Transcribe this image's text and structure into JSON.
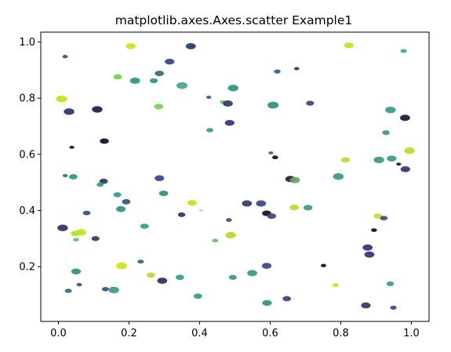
{
  "chart_data": {
    "type": "scatter",
    "title": "matplotlib.axes.Axes.scatter Example1",
    "xlabel": "",
    "ylabel": "",
    "xlim": [
      -0.05,
      1.05
    ],
    "ylim": [
      0.005,
      1.035
    ],
    "xticks": [
      "0.0",
      "0.2",
      "0.4",
      "0.6",
      "0.8",
      "1.0"
    ],
    "yticks": [
      "0.2",
      "0.4",
      "0.6",
      "0.8",
      "1.0"
    ],
    "xtick_values": [
      0.0,
      0.2,
      0.4,
      0.6,
      0.8,
      1.0
    ],
    "ytick_values": [
      0.2,
      0.4,
      0.6,
      0.8,
      1.0
    ],
    "grid": false,
    "legend": "none",
    "marker": "ellipse",
    "colormap": [
      "#440154",
      "#3b528b",
      "#21918c",
      "#5ec962",
      "#fde725"
    ],
    "points": [
      {
        "x": 0.019,
        "y": 0.948,
        "size": 0.15,
        "color": "#3b528b"
      },
      {
        "x": 0.205,
        "y": 0.985,
        "size": 0.55,
        "color": "#d2e21b"
      },
      {
        "x": 0.315,
        "y": 0.93,
        "size": 0.55,
        "color": "#3e4a89"
      },
      {
        "x": 0.375,
        "y": 0.985,
        "size": 0.6,
        "color": "#2c3e6e"
      },
      {
        "x": 0.823,
        "y": 0.988,
        "size": 0.55,
        "color": "#c8e020"
      },
      {
        "x": 0.978,
        "y": 0.968,
        "size": 0.25,
        "color": "#35b779"
      },
      {
        "x": 0.286,
        "y": 0.888,
        "size": 0.5,
        "color": "#3b6f7e"
      },
      {
        "x": 0.168,
        "y": 0.876,
        "size": 0.45,
        "color": "#7ad151"
      },
      {
        "x": 0.217,
        "y": 0.862,
        "size": 0.6,
        "color": "#2a9d7e"
      },
      {
        "x": 0.27,
        "y": 0.862,
        "size": 0.4,
        "color": "#2a9d7e"
      },
      {
        "x": 0.35,
        "y": 0.845,
        "size": 0.7,
        "color": "#4aa88d"
      },
      {
        "x": 0.495,
        "y": 0.836,
        "size": 0.65,
        "color": "#34947f"
      },
      {
        "x": 0.62,
        "y": 0.895,
        "size": 0.25,
        "color": "#355f8d"
      },
      {
        "x": 0.675,
        "y": 0.905,
        "size": 0.12,
        "color": "#2c3e6e"
      },
      {
        "x": 0.009,
        "y": 0.797,
        "size": 0.7,
        "color": "#c6e21b"
      },
      {
        "x": 0.03,
        "y": 0.752,
        "size": 0.65,
        "color": "#31356e"
      },
      {
        "x": 0.11,
        "y": 0.76,
        "size": 0.65,
        "color": "#2a1e4f"
      },
      {
        "x": 0.284,
        "y": 0.77,
        "size": 0.5,
        "color": "#7ad151"
      },
      {
        "x": 0.426,
        "y": 0.803,
        "size": 0.1,
        "color": "#3b528b"
      },
      {
        "x": 0.466,
        "y": 0.786,
        "size": 0.2,
        "color": "#5ec962"
      },
      {
        "x": 0.48,
        "y": 0.781,
        "size": 0.6,
        "color": "#34406e"
      },
      {
        "x": 0.485,
        "y": 0.712,
        "size": 0.55,
        "color": "#3e3680"
      },
      {
        "x": 0.608,
        "y": 0.775,
        "size": 0.7,
        "color": "#34947f"
      },
      {
        "x": 0.713,
        "y": 0.782,
        "size": 0.4,
        "color": "#3b4d7e"
      },
      {
        "x": 0.941,
        "y": 0.758,
        "size": 0.65,
        "color": "#3b9e8a"
      },
      {
        "x": 0.982,
        "y": 0.73,
        "size": 0.6,
        "color": "#1f1d3d"
      },
      {
        "x": 0.429,
        "y": 0.686,
        "size": 0.3,
        "color": "#3aa07b"
      },
      {
        "x": 0.13,
        "y": 0.647,
        "size": 0.5,
        "color": "#141427"
      },
      {
        "x": 0.038,
        "y": 0.625,
        "size": 0.1,
        "color": "#141427"
      },
      {
        "x": 0.928,
        "y": 0.677,
        "size": 0.35,
        "color": "#3aa07b"
      },
      {
        "x": 0.995,
        "y": 0.613,
        "size": 0.65,
        "color": "#b4de2c"
      },
      {
        "x": 0.602,
        "y": 0.605,
        "size": 0.1,
        "color": "#3b6f7e"
      },
      {
        "x": 0.614,
        "y": 0.589,
        "size": 0.2,
        "color": "#141427"
      },
      {
        "x": 0.813,
        "y": 0.58,
        "size": 0.45,
        "color": "#b4de2c"
      },
      {
        "x": 0.908,
        "y": 0.58,
        "size": 0.65,
        "color": "#3b9e8a"
      },
      {
        "x": 0.944,
        "y": 0.585,
        "size": 0.55,
        "color": "#3aa07b"
      },
      {
        "x": 0.964,
        "y": 0.565,
        "size": 0.1,
        "color": "#1f1d3d"
      },
      {
        "x": 0.983,
        "y": 0.547,
        "size": 0.55,
        "color": "#3e3680"
      },
      {
        "x": 0.019,
        "y": 0.524,
        "size": 0.12,
        "color": "#3b6f7e"
      },
      {
        "x": 0.042,
        "y": 0.52,
        "size": 0.45,
        "color": "#2a9d7e"
      },
      {
        "x": 0.286,
        "y": 0.515,
        "size": 0.55,
        "color": "#3e4a89"
      },
      {
        "x": 0.657,
        "y": 0.512,
        "size": 0.6,
        "color": "#2a1e4f"
      },
      {
        "x": 0.67,
        "y": 0.508,
        "size": 0.6,
        "color": "#6aa85a"
      },
      {
        "x": 0.793,
        "y": 0.521,
        "size": 0.65,
        "color": "#3aa07b"
      },
      {
        "x": 0.128,
        "y": 0.504,
        "size": 0.45,
        "color": "#2c3e6e"
      },
      {
        "x": 0.118,
        "y": 0.492,
        "size": 0.3,
        "color": "#3aa07b"
      },
      {
        "x": 0.167,
        "y": 0.456,
        "size": 0.4,
        "color": "#3b9e8a"
      },
      {
        "x": 0.298,
        "y": 0.461,
        "size": 0.5,
        "color": "#34947f"
      },
      {
        "x": 0.192,
        "y": 0.431,
        "size": 0.45,
        "color": "#3b528b"
      },
      {
        "x": 0.379,
        "y": 0.427,
        "size": 0.5,
        "color": "#c6e21b"
      },
      {
        "x": 0.534,
        "y": 0.425,
        "size": 0.6,
        "color": "#34406e"
      },
      {
        "x": 0.574,
        "y": 0.425,
        "size": 0.6,
        "color": "#3e4a89"
      },
      {
        "x": 0.668,
        "y": 0.411,
        "size": 0.5,
        "color": "#b4de2c"
      },
      {
        "x": 0.707,
        "y": 0.41,
        "size": 0.5,
        "color": "#3aa07b"
      },
      {
        "x": 0.177,
        "y": 0.405,
        "size": 0.55,
        "color": "#34947f"
      },
      {
        "x": 0.08,
        "y": 0.391,
        "size": 0.35,
        "color": "#3b528b"
      },
      {
        "x": 0.349,
        "y": 0.385,
        "size": 0.35,
        "color": "#31356e"
      },
      {
        "x": 0.404,
        "y": 0.4,
        "size": 0.1,
        "color": "#dadada"
      },
      {
        "x": 0.59,
        "y": 0.39,
        "size": 0.5,
        "color": "#141427"
      },
      {
        "x": 0.604,
        "y": 0.38,
        "size": 0.5,
        "color": "#3b4d7e"
      },
      {
        "x": 0.905,
        "y": 0.38,
        "size": 0.4,
        "color": "#c6e21b"
      },
      {
        "x": 0.922,
        "y": 0.373,
        "size": 0.35,
        "color": "#3b528b"
      },
      {
        "x": 0.483,
        "y": 0.366,
        "size": 0.2,
        "color": "#3b528b"
      },
      {
        "x": 0.244,
        "y": 0.344,
        "size": 0.45,
        "color": "#3b9e8a"
      },
      {
        "x": 0.012,
        "y": 0.338,
        "size": 0.65,
        "color": "#31356e"
      },
      {
        "x": 0.064,
        "y": 0.322,
        "size": 0.65,
        "color": "#c6e21b"
      },
      {
        "x": 0.047,
        "y": 0.318,
        "size": 0.45,
        "color": "#b4de2c"
      },
      {
        "x": 0.105,
        "y": 0.3,
        "size": 0.4,
        "color": "#34406e"
      },
      {
        "x": 0.05,
        "y": 0.296,
        "size": 0.2,
        "color": "#5ec962"
      },
      {
        "x": 0.444,
        "y": 0.293,
        "size": 0.2,
        "color": "#5ec962"
      },
      {
        "x": 0.488,
        "y": 0.312,
        "size": 0.65,
        "color": "#b4de2c"
      },
      {
        "x": 0.894,
        "y": 0.33,
        "size": 0.2,
        "color": "#141427"
      },
      {
        "x": 0.876,
        "y": 0.268,
        "size": 0.6,
        "color": "#3e3680"
      },
      {
        "x": 0.881,
        "y": 0.243,
        "size": 0.6,
        "color": "#3e3680"
      },
      {
        "x": 0.233,
        "y": 0.218,
        "size": 0.25,
        "color": "#3b6f7e"
      },
      {
        "x": 0.59,
        "y": 0.203,
        "size": 0.55,
        "color": "#3e4a89"
      },
      {
        "x": 0.751,
        "y": 0.204,
        "size": 0.15,
        "color": "#141427"
      },
      {
        "x": 0.179,
        "y": 0.203,
        "size": 0.7,
        "color": "#d2e21b"
      },
      {
        "x": 0.05,
        "y": 0.183,
        "size": 0.55,
        "color": "#34947f"
      },
      {
        "x": 0.262,
        "y": 0.17,
        "size": 0.45,
        "color": "#b4de2c"
      },
      {
        "x": 0.344,
        "y": 0.162,
        "size": 0.45,
        "color": "#3b9e8a"
      },
      {
        "x": 0.494,
        "y": 0.162,
        "size": 0.4,
        "color": "#3aa07b"
      },
      {
        "x": 0.549,
        "y": 0.177,
        "size": 0.6,
        "color": "#3aa07b"
      },
      {
        "x": 0.294,
        "y": 0.15,
        "size": 0.6,
        "color": "#31356e"
      },
      {
        "x": 0.059,
        "y": 0.136,
        "size": 0.15,
        "color": "#3b528b"
      },
      {
        "x": 0.785,
        "y": 0.134,
        "size": 0.2,
        "color": "#c6e21b"
      },
      {
        "x": 0.94,
        "y": 0.139,
        "size": 0.35,
        "color": "#3aa07b"
      },
      {
        "x": 0.133,
        "y": 0.12,
        "size": 0.3,
        "color": "#3b528b"
      },
      {
        "x": 0.157,
        "y": 0.117,
        "size": 0.65,
        "color": "#3b9e8a"
      },
      {
        "x": 0.028,
        "y": 0.114,
        "size": 0.3,
        "color": "#3b6f7e"
      },
      {
        "x": 0.395,
        "y": 0.095,
        "size": 0.45,
        "color": "#3aa07b"
      },
      {
        "x": 0.647,
        "y": 0.086,
        "size": 0.45,
        "color": "#3e4a89"
      },
      {
        "x": 0.591,
        "y": 0.071,
        "size": 0.55,
        "color": "#34947f"
      },
      {
        "x": 0.871,
        "y": 0.062,
        "size": 0.55,
        "color": "#2c3e6e"
      },
      {
        "x": 0.949,
        "y": 0.054,
        "size": 0.25,
        "color": "#3e4a89"
      }
    ]
  }
}
